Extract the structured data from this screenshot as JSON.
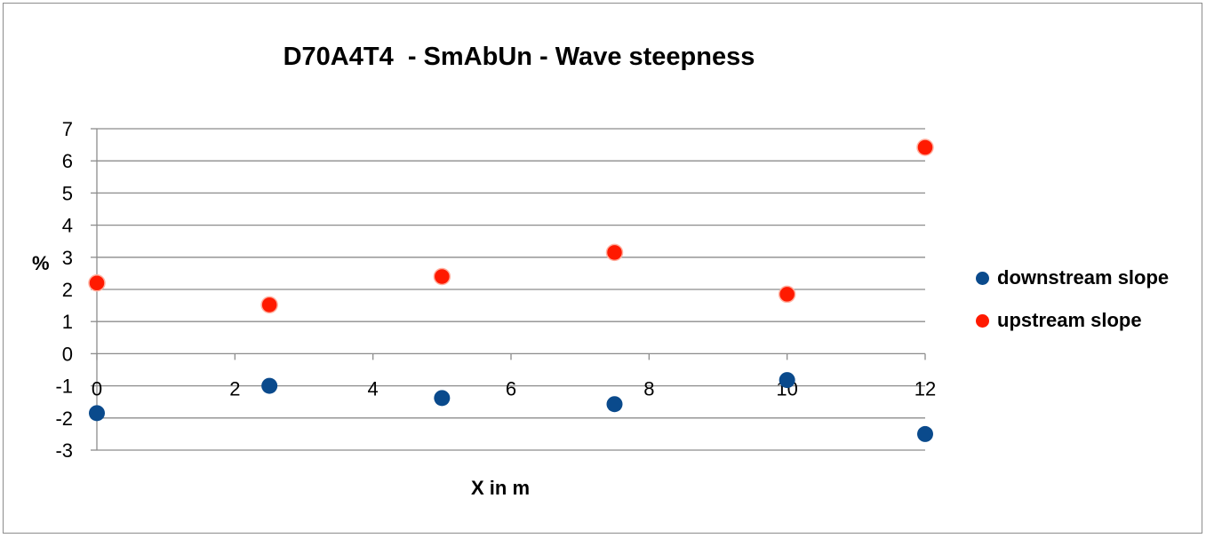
{
  "chart_data": {
    "type": "scatter",
    "title": "D70A4T4  - SmAbUn - Wave steepness",
    "xlabel": "X in m",
    "ylabel": "%",
    "xlim": [
      0,
      12
    ],
    "ylim": [
      -3,
      7
    ],
    "x_ticks": [
      0,
      2,
      4,
      6,
      8,
      10,
      12
    ],
    "y_ticks": [
      -3,
      -2,
      -1,
      0,
      1,
      2,
      3,
      4,
      5,
      6,
      7
    ],
    "grid": "horizontal",
    "legend_position": "right",
    "series": [
      {
        "name": "downstream slope",
        "color": "#0a4a8c",
        "points": [
          [
            0,
            -1.85
          ],
          [
            2.5,
            -1.0
          ],
          [
            5,
            -1.38
          ],
          [
            7.5,
            -1.57
          ],
          [
            10,
            -0.82
          ],
          [
            12,
            -2.5
          ]
        ]
      },
      {
        "name": "upstream slope",
        "color": "#ff1a00",
        "points": [
          [
            0,
            2.2
          ],
          [
            2.5,
            1.52
          ],
          [
            5,
            2.4
          ],
          [
            7.5,
            3.15
          ],
          [
            10,
            1.85
          ],
          [
            12,
            6.42
          ]
        ]
      }
    ]
  }
}
